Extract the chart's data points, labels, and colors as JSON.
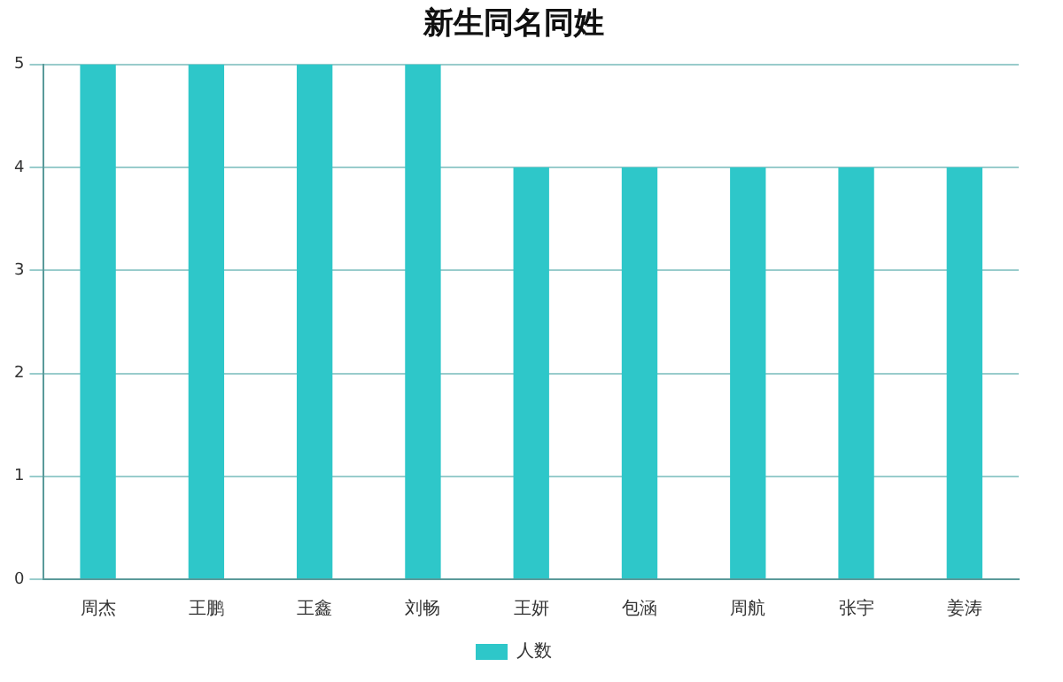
{
  "chart_data": {
    "type": "bar",
    "title": "新生同名同姓",
    "categories": [
      "周杰",
      "王鹏",
      "王鑫",
      "刘畅",
      "王妍",
      "包涵",
      "周航",
      "张宇",
      "姜涛"
    ],
    "series": [
      {
        "name": "人数",
        "color": "#2ec7c9",
        "values": [
          5,
          5,
          5,
          5,
          4,
          4,
          4,
          4,
          4
        ]
      }
    ],
    "ylim": [
      0,
      5
    ],
    "yticks": [
      0,
      1,
      2,
      3,
      4,
      5
    ],
    "grid": "y",
    "legend": "bottom"
  }
}
